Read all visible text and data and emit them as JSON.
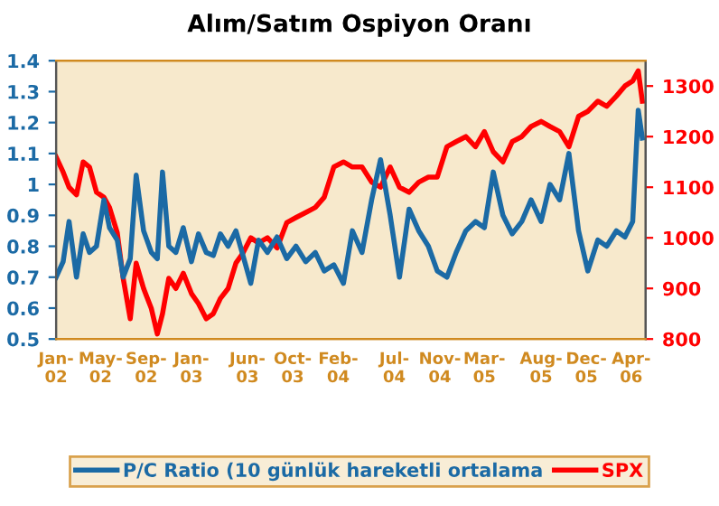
{
  "chart_data": {
    "type": "line",
    "title": "Alım/Satım Ospiyon Oranı",
    "x": [
      "2002-01-01",
      "2002-01-20",
      "2002-02-05",
      "2002-02-25",
      "2002-03-15",
      "2002-04-01",
      "2002-04-20",
      "2002-05-10",
      "2002-05-25",
      "2002-06-15",
      "2002-07-01",
      "2002-07-20",
      "2002-08-05",
      "2002-08-25",
      "2002-09-15",
      "2002-10-01",
      "2002-10-15",
      "2002-11-01",
      "2002-11-20",
      "2002-12-10",
      "2003-01-01",
      "2003-01-20",
      "2003-02-10",
      "2003-03-01",
      "2003-03-20",
      "2003-04-10",
      "2003-05-01",
      "2003-05-20",
      "2003-06-10",
      "2003-07-01",
      "2003-07-25",
      "2003-08-20",
      "2003-09-15",
      "2003-10-10",
      "2003-11-05",
      "2003-12-01",
      "2003-12-25",
      "2004-01-20",
      "2004-02-15",
      "2004-03-10",
      "2004-04-05",
      "2004-05-01",
      "2004-05-25",
      "2004-06-20",
      "2004-07-15",
      "2004-08-10",
      "2004-09-05",
      "2004-10-01",
      "2004-10-25",
      "2004-11-20",
      "2004-12-15",
      "2005-01-10",
      "2005-02-05",
      "2005-03-01",
      "2005-03-25",
      "2005-04-20",
      "2005-05-15",
      "2005-06-10",
      "2005-07-05",
      "2005-08-01",
      "2005-08-25",
      "2005-09-20",
      "2005-10-15",
      "2005-11-10",
      "2005-12-05",
      "2006-01-01",
      "2006-01-25",
      "2006-02-20",
      "2006-03-15",
      "2006-04-05",
      "2006-04-20",
      "2006-05-01"
    ],
    "series": [
      {
        "name": "P/C Ratio (10 günlük hareketli ortalama",
        "color": "#1b6aa5",
        "values": [
          0.7,
          0.75,
          0.88,
          0.7,
          0.84,
          0.78,
          0.8,
          0.95,
          0.86,
          0.82,
          0.7,
          0.76,
          1.03,
          0.85,
          0.78,
          0.76,
          1.04,
          0.8,
          0.78,
          0.86,
          0.75,
          0.84,
          0.78,
          0.77,
          0.84,
          0.8,
          0.85,
          0.77,
          0.68,
          0.82,
          0.78,
          0.83,
          0.76,
          0.8,
          0.75,
          0.78,
          0.72,
          0.74,
          0.68,
          0.85,
          0.78,
          0.95,
          1.08,
          0.9,
          0.7,
          0.92,
          0.85,
          0.8,
          0.72,
          0.7,
          0.78,
          0.85,
          0.88,
          0.86,
          1.04,
          0.9,
          0.84,
          0.88,
          0.95,
          0.88,
          1.0,
          0.95,
          1.1,
          0.85,
          0.72,
          0.82,
          0.8,
          0.85,
          0.83,
          0.88,
          1.24,
          1.15
        ]
      },
      {
        "name": "SPX",
        "color": "#ff0000",
        "values": [
          1160,
          1130,
          1100,
          1085,
          1150,
          1140,
          1090,
          1080,
          1060,
          1010,
          920,
          840,
          950,
          900,
          860,
          810,
          850,
          920,
          900,
          930,
          890,
          870,
          840,
          850,
          880,
          900,
          950,
          970,
          1000,
          990,
          1000,
          980,
          1030,
          1040,
          1050,
          1060,
          1080,
          1140,
          1150,
          1140,
          1140,
          1110,
          1100,
          1140,
          1100,
          1090,
          1110,
          1120,
          1120,
          1180,
          1190,
          1200,
          1180,
          1210,
          1170,
          1150,
          1190,
          1200,
          1220,
          1230,
          1220,
          1210,
          1180,
          1240,
          1250,
          1270,
          1260,
          1280,
          1300,
          1310,
          1330,
          1270
        ],
        "axis": "y2"
      }
    ],
    "xlim": [
      "2002-01-01",
      "2006-05-10"
    ],
    "xticks": [
      {
        "value": "2002-01-01",
        "label": "Jan-\n02"
      },
      {
        "value": "2002-05-01",
        "label": "May-\n02"
      },
      {
        "value": "2002-09-01",
        "label": "Sep-\n02"
      },
      {
        "value": "2003-01-01",
        "label": "Jan-\n03"
      },
      {
        "value": "2003-06-01",
        "label": "Jun-\n03"
      },
      {
        "value": "2003-10-01",
        "label": "Oct-\n03"
      },
      {
        "value": "2004-02-01",
        "label": "Feb-\n04"
      },
      {
        "value": "2004-07-01",
        "label": "Jul-\n04"
      },
      {
        "value": "2004-11-01",
        "label": "Nov-\n04"
      },
      {
        "value": "2005-03-01",
        "label": "Mar-\n05"
      },
      {
        "value": "2005-08-01",
        "label": "Aug-\n05"
      },
      {
        "value": "2005-12-01",
        "label": "Dec-\n05"
      },
      {
        "value": "2006-04-01",
        "label": "Apr-\n06"
      }
    ],
    "ylim": [
      0.5,
      1.4
    ],
    "yticks": [
      {
        "value": 0.5,
        "label": "0.5"
      },
      {
        "value": 0.6,
        "label": "0.6"
      },
      {
        "value": 0.7,
        "label": "0.7"
      },
      {
        "value": 0.8,
        "label": "0.8"
      },
      {
        "value": 0.9,
        "label": "0.9"
      },
      1,
      {
        "value": 1.1,
        "label": "1.1"
      },
      {
        "value": 1.2,
        "label": "1.2"
      },
      {
        "value": 1.3,
        "label": "1.3"
      },
      {
        "value": 1.4,
        "label": "1.4"
      }
    ],
    "y2lim": [
      800,
      1350
    ],
    "y2ticks": [
      800,
      900,
      1000,
      1100,
      1200,
      1300
    ],
    "legend": "bottom",
    "grid": false
  }
}
